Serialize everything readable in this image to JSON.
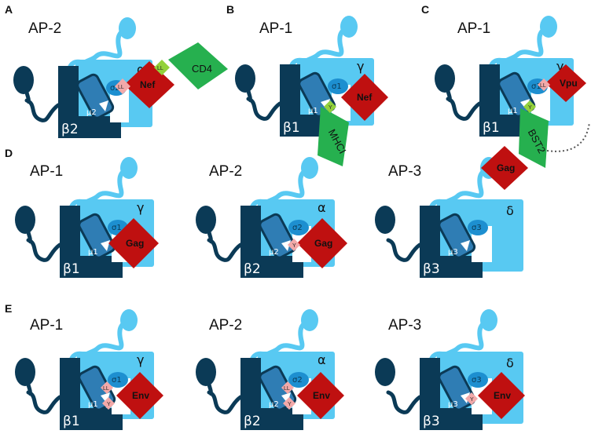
{
  "colors": {
    "dark_blue": "#0b3a56",
    "light_blue": "#58c9f2",
    "mid_blue": "#2f7db4",
    "red": "#bf1010",
    "green": "#26b04f",
    "pink": "#f2a9a9",
    "light_green": "#93d13b"
  },
  "panels": {
    "A": {
      "letter": "A",
      "complex": "AP-2",
      "large_sub": "β2",
      "medium_sub": "μ2",
      "small_sub": "σ2",
      "adaptin": "α",
      "viral": "Nef",
      "motif": "LL",
      "cargo": "CD4",
      "cargo_motif": "LL"
    },
    "B": {
      "letter": "B",
      "complex": "AP-1",
      "large_sub": "β1",
      "medium_sub": "μ1",
      "small_sub": "σ1",
      "adaptin": "γ",
      "viral": "Nef",
      "cargo": "MHCI",
      "cargo_motif": "Y"
    },
    "C": {
      "letter": "C",
      "complex": "AP-1",
      "large_sub": "β1",
      "medium_sub": "μ1",
      "small_sub": "σ1",
      "adaptin": "γ",
      "viral": "Vpu",
      "motif": "LL",
      "cargo": "BST2",
      "cargo_motif": "Y"
    },
    "D1": {
      "letter": "D",
      "complex": "AP-1",
      "large_sub": "β1",
      "medium_sub": "μ1",
      "small_sub": "σ1",
      "adaptin": "γ",
      "viral": "Gag"
    },
    "D2": {
      "complex": "AP-2",
      "large_sub": "β2",
      "medium_sub": "μ2",
      "small_sub": "σ2",
      "adaptin": "α",
      "viral": "Gag",
      "motif": "Y"
    },
    "D3": {
      "complex": "AP-3",
      "large_sub": "β3",
      "medium_sub": "μ3",
      "small_sub": "σ3",
      "adaptin": "δ",
      "viral": "Gag"
    },
    "E1": {
      "letter": "E",
      "complex": "AP-1",
      "large_sub": "β1",
      "medium_sub": "μ1",
      "small_sub": "σ1",
      "adaptin": "γ",
      "viral": "Env",
      "motif_top": "LL",
      "motif_bottom": "Y"
    },
    "E2": {
      "complex": "AP-2",
      "large_sub": "β2",
      "medium_sub": "μ2",
      "small_sub": "σ2",
      "adaptin": "α",
      "viral": "Env",
      "motif_top": "LL",
      "motif_bottom": "Y"
    },
    "E3": {
      "complex": "AP-3",
      "large_sub": "β3",
      "medium_sub": "μ3",
      "small_sub": "σ3",
      "adaptin": "δ",
      "viral": "Env",
      "motif": "Y"
    }
  }
}
